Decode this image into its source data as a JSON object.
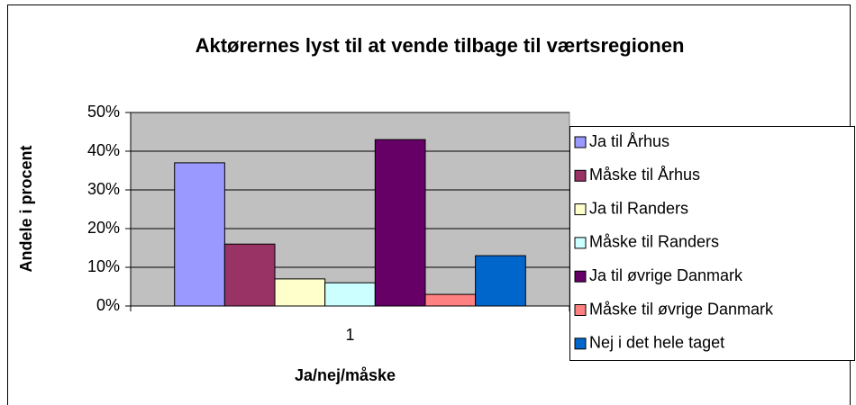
{
  "chart_data": {
    "type": "bar",
    "title": "Aktørernes lyst til at vende tilbage til værtsregionen",
    "x_label": "Ja/nej/måske",
    "y_label": "Andele i procent",
    "categories": [
      "1"
    ],
    "series": [
      {
        "name": "Ja til Århus",
        "color": "#9999ff",
        "values": [
          37
        ]
      },
      {
        "name": "Måske til Århus",
        "color": "#993366",
        "values": [
          16
        ]
      },
      {
        "name": "Ja til Randers",
        "color": "#ffffcc",
        "values": [
          7
        ]
      },
      {
        "name": "Måske til Randers",
        "color": "#ccffff",
        "values": [
          6
        ]
      },
      {
        "name": "Ja til øvrige Danmark",
        "color": "#660066",
        "values": [
          43
        ]
      },
      {
        "name": "Måske til øvrige Danmark",
        "color": "#ff8080",
        "values": [
          3
        ]
      },
      {
        "name": "Nej i det hele taget",
        "color": "#0066cc",
        "values": [
          13
        ]
      }
    ],
    "ylim": [
      0,
      50
    ],
    "yticks": [
      {
        "value": 0,
        "label": "0%"
      },
      {
        "value": 10,
        "label": "10%"
      },
      {
        "value": 20,
        "label": "20%"
      },
      {
        "value": 30,
        "label": "30%"
      },
      {
        "value": 40,
        "label": "40%"
      },
      {
        "value": 50,
        "label": "50%"
      }
    ],
    "grid": true,
    "plot_background": "#c0c0c0",
    "legend": "right"
  }
}
